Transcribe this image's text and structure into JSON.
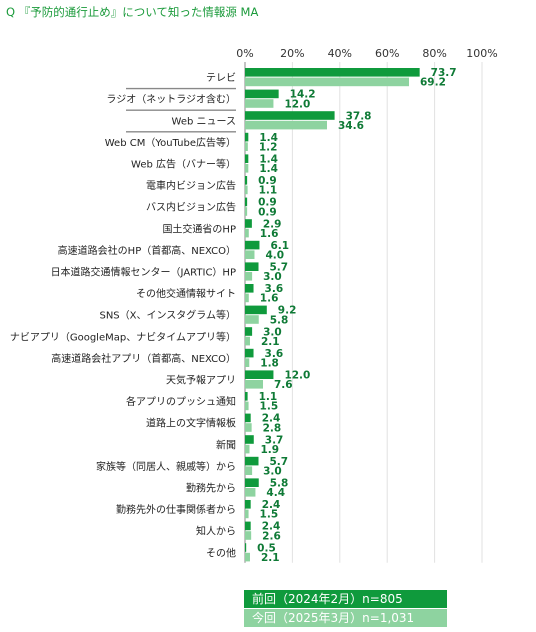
{
  "title": "Q 『予防的通行止め』について知った情報源 MA",
  "colors": {
    "prev": "#0f9a3c",
    "curr": "#8ed3a0",
    "title": "#1a9a3a"
  },
  "legend": {
    "prev": "前回（2024年2月）n=805",
    "curr": "今回（2025年3月）n=1,031"
  },
  "chart_data": {
    "type": "bar",
    "orientation": "horizontal",
    "title": "Q 『予防的通行止め』について知った情報源 MA",
    "xlim": [
      0,
      100
    ],
    "xticks": [
      "0%",
      "20%",
      "40%",
      "60%",
      "80%",
      "100%"
    ],
    "categories": [
      "テレビ",
      "ラジオ（ネットラジオ含む）",
      "Web ニュース",
      "Web CM（YouTube広告等）",
      "Web 広告（バナー等）",
      "電車内ビジョン広告",
      "バス内ビジョン広告",
      "国土交通省のHP",
      "高速道路会社のHP（首都高、NEXCO）",
      "日本道路交通情報センター（JARTIC）HP",
      "その他交通情報サイト",
      "SNS（X、インスタグラム等）",
      "ナビアプリ（GoogleMap、ナビタイムアプリ等）",
      "高速道路会社アプリ（首都高、NEXCO）",
      "天気予報アプリ",
      "各アプリのプッシュ通知",
      "道路上の文字情報板",
      "新聞",
      "家族等（同居人、親戚等）から",
      "勤務先から",
      "勤務先外の仕事関係者から",
      "知人から",
      "その他"
    ],
    "series": [
      {
        "name": "前回（2024年2月）n=805",
        "values": [
          73.7,
          14.2,
          37.8,
          1.4,
          1.4,
          0.9,
          0.9,
          2.9,
          6.1,
          5.7,
          3.6,
          9.2,
          3.0,
          3.6,
          12.0,
          1.1,
          2.4,
          3.7,
          5.7,
          5.8,
          2.4,
          2.4,
          0.5
        ]
      },
      {
        "name": "今回（2025年3月）n=1,031",
        "values": [
          69.2,
          12.0,
          34.6,
          1.2,
          1.4,
          1.1,
          0.9,
          1.6,
          4.0,
          3.0,
          1.6,
          5.8,
          2.1,
          1.8,
          7.6,
          1.5,
          2.8,
          1.9,
          3.0,
          4.4,
          1.5,
          2.6,
          2.1
        ]
      }
    ],
    "highlighted_categories": [
      0,
      1,
      2
    ],
    "legend_position": "bottom-right"
  }
}
